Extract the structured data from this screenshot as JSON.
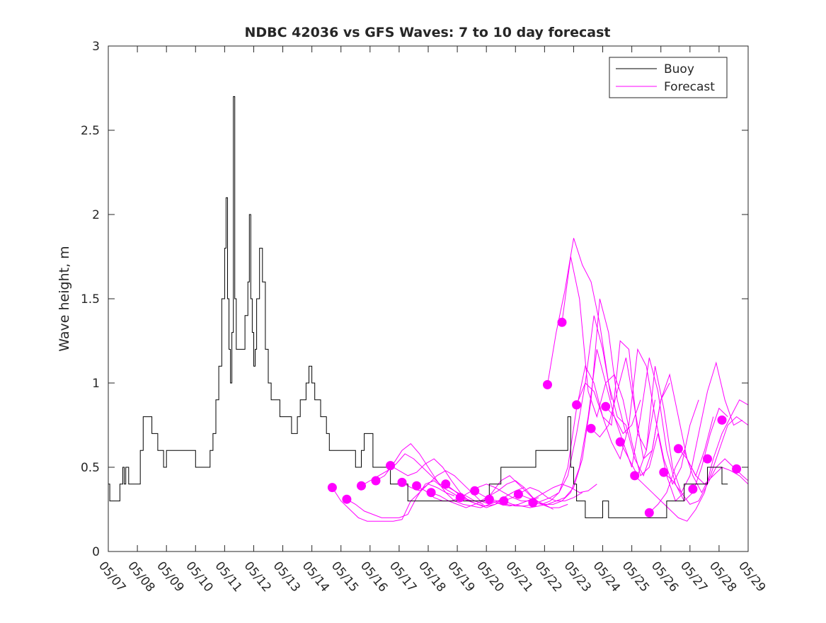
{
  "chart_data": {
    "type": "line",
    "title": "NDBC 42036 vs GFS Waves: 7 to 10 day forecast",
    "xlabel": "",
    "ylabel": "Wave height, m",
    "x_unit": "day of May",
    "xlim": [
      7,
      29
    ],
    "ylim": [
      0,
      3
    ],
    "yticks": [
      0,
      0.5,
      1,
      1.5,
      2,
      2.5,
      3
    ],
    "xtick_labels": [
      "05/07",
      "05/08",
      "05/09",
      "05/10",
      "05/11",
      "05/12",
      "05/13",
      "05/14",
      "05/15",
      "05/16",
      "05/17",
      "05/18",
      "05/19",
      "05/20",
      "05/21",
      "05/22",
      "05/23",
      "05/24",
      "05/25",
      "05/26",
      "05/27",
      "05/28",
      "05/29"
    ],
    "grid": false,
    "legend_position": "top-right",
    "legend": [
      {
        "label": "Buoy",
        "color": "#000000"
      },
      {
        "label": "Forecast",
        "color": "#ff00ff"
      }
    ],
    "buoy": {
      "name": "Buoy",
      "color": "#000000",
      "x": [
        7.0,
        7.05,
        7.3,
        7.4,
        7.5,
        7.55,
        7.6,
        7.7,
        7.8,
        7.9,
        8.0,
        8.1,
        8.2,
        8.4,
        8.5,
        8.6,
        8.7,
        8.8,
        8.9,
        9.0,
        9.2,
        9.5,
        10.0,
        10.1,
        10.2,
        10.3,
        10.4,
        10.5,
        10.6,
        10.7,
        10.8,
        10.9,
        11.0,
        11.05,
        11.1,
        11.15,
        11.2,
        11.25,
        11.3,
        11.35,
        11.4,
        11.5,
        11.6,
        11.7,
        11.8,
        11.85,
        11.9,
        11.95,
        12.0,
        12.05,
        12.1,
        12.2,
        12.3,
        12.4,
        12.5,
        12.6,
        12.7,
        12.8,
        12.9,
        13.0,
        13.1,
        13.3,
        13.5,
        13.6,
        13.7,
        13.8,
        13.9,
        14.0,
        14.1,
        14.2,
        14.3,
        14.5,
        14.6,
        14.8,
        15.0,
        15.2,
        15.3,
        15.5,
        15.7,
        15.8,
        16.0,
        16.1,
        16.3,
        16.5,
        16.7,
        16.9,
        17.0,
        17.3,
        17.6,
        17.9,
        18.2,
        18.5,
        18.7,
        18.9,
        19.1,
        19.3,
        19.5,
        19.7,
        19.9,
        20.1,
        20.3,
        20.5,
        20.7,
        20.9,
        21.1,
        21.3,
        21.5,
        21.7,
        21.9,
        22.1,
        22.3,
        22.6,
        22.8,
        22.9,
        23.0,
        23.1,
        23.2,
        23.4,
        23.6,
        23.8,
        24.0,
        24.2,
        24.5,
        25.0,
        25.5,
        26.0,
        26.2,
        26.4,
        26.6,
        26.8,
        27.0,
        27.3,
        27.6,
        27.9,
        28.0,
        28.1,
        28.3
      ],
      "y": [
        0.4,
        0.3,
        0.3,
        0.4,
        0.5,
        0.4,
        0.5,
        0.4,
        0.4,
        0.4,
        0.4,
        0.6,
        0.8,
        0.8,
        0.7,
        0.7,
        0.6,
        0.6,
        0.5,
        0.6,
        0.6,
        0.6,
        0.5,
        0.5,
        0.5,
        0.5,
        0.5,
        0.6,
        0.7,
        0.9,
        1.1,
        1.5,
        1.8,
        2.1,
        1.5,
        1.2,
        1.0,
        1.3,
        2.7,
        1.5,
        1.2,
        1.2,
        1.2,
        1.4,
        1.6,
        2.0,
        1.5,
        1.3,
        1.1,
        1.2,
        1.5,
        1.8,
        1.6,
        1.2,
        1.0,
        0.9,
        0.9,
        0.9,
        0.8,
        0.8,
        0.8,
        0.7,
        0.8,
        0.9,
        0.9,
        1.0,
        1.1,
        1.0,
        0.9,
        0.9,
        0.8,
        0.7,
        0.6,
        0.6,
        0.6,
        0.6,
        0.6,
        0.5,
        0.6,
        0.7,
        0.7,
        0.5,
        0.5,
        0.5,
        0.4,
        0.4,
        0.4,
        0.3,
        0.3,
        0.3,
        0.3,
        0.3,
        0.3,
        0.3,
        0.3,
        0.3,
        0.3,
        0.3,
        0.3,
        0.4,
        0.4,
        0.5,
        0.5,
        0.5,
        0.5,
        0.5,
        0.5,
        0.6,
        0.6,
        0.6,
        0.6,
        0.6,
        0.8,
        0.5,
        0.4,
        0.3,
        0.3,
        0.2,
        0.2,
        0.2,
        0.3,
        0.2,
        0.2,
        0.2,
        0.2,
        0.2,
        0.3,
        0.3,
        0.3,
        0.4,
        0.4,
        0.4,
        0.5,
        0.5,
        0.5,
        0.4,
        0.4
      ]
    },
    "forecast_series": [
      {
        "color": "#ff00ff",
        "x": [
          14.7,
          15.0,
          15.3,
          15.6,
          15.9,
          16.2,
          16.5,
          16.8,
          17.1,
          17.4,
          17.7,
          18.0,
          18.3,
          18.6,
          18.9
        ],
        "y": [
          0.38,
          0.3,
          0.25,
          0.2,
          0.18,
          0.18,
          0.18,
          0.18,
          0.19,
          0.3,
          0.35,
          0.4,
          0.38,
          0.35,
          0.33
        ]
      },
      {
        "color": "#ff00ff",
        "x": [
          15.2,
          15.5,
          15.8,
          16.1,
          16.4,
          16.7,
          17.0,
          17.3,
          17.6,
          17.9,
          18.2,
          18.5,
          18.8,
          19.1,
          19.4
        ],
        "y": [
          0.31,
          0.28,
          0.24,
          0.22,
          0.2,
          0.2,
          0.2,
          0.22,
          0.32,
          0.4,
          0.42,
          0.38,
          0.35,
          0.32,
          0.3
        ]
      },
      {
        "color": "#ff00ff",
        "x": [
          15.7,
          16.0,
          16.3,
          16.6,
          16.9,
          17.2,
          17.5,
          17.8,
          18.1,
          18.4,
          18.7,
          19.0,
          19.3,
          19.6,
          19.9
        ],
        "y": [
          0.39,
          0.42,
          0.45,
          0.48,
          0.52,
          0.58,
          0.55,
          0.5,
          0.45,
          0.4,
          0.38,
          0.35,
          0.33,
          0.3,
          0.28
        ]
      },
      {
        "color": "#ff00ff",
        "x": [
          16.2,
          16.5,
          16.8,
          17.1,
          17.4,
          17.7,
          18.0,
          18.3,
          18.6,
          18.9,
          19.2,
          19.5,
          19.8,
          20.1,
          20.4
        ],
        "y": [
          0.42,
          0.45,
          0.52,
          0.6,
          0.64,
          0.58,
          0.5,
          0.42,
          0.35,
          0.3,
          0.28,
          0.27,
          0.26,
          0.28,
          0.3
        ]
      },
      {
        "color": "#ff00ff",
        "x": [
          16.7,
          17.0,
          17.3,
          17.6,
          17.9,
          18.2,
          18.5,
          18.8,
          19.1,
          19.4,
          19.7,
          20.0,
          20.3,
          20.6,
          20.9
        ],
        "y": [
          0.51,
          0.48,
          0.45,
          0.47,
          0.52,
          0.55,
          0.5,
          0.42,
          0.35,
          0.3,
          0.28,
          0.26,
          0.28,
          0.32,
          0.35
        ]
      },
      {
        "color": "#ff00ff",
        "x": [
          17.1,
          17.4,
          17.7,
          18.0,
          18.3,
          18.6,
          18.9,
          19.2,
          19.5,
          19.8,
          20.1,
          20.4,
          20.7,
          21.0,
          21.3
        ],
        "y": [
          0.41,
          0.38,
          0.36,
          0.4,
          0.45,
          0.48,
          0.45,
          0.4,
          0.35,
          0.3,
          0.28,
          0.3,
          0.33,
          0.36,
          0.38
        ]
      },
      {
        "color": "#ff00ff",
        "x": [
          17.6,
          17.9,
          18.2,
          18.5,
          18.8,
          19.1,
          19.4,
          19.7,
          20.0,
          20.3,
          20.6,
          20.9,
          21.2,
          21.5,
          21.8
        ],
        "y": [
          0.39,
          0.36,
          0.32,
          0.3,
          0.3,
          0.32,
          0.35,
          0.38,
          0.4,
          0.38,
          0.35,
          0.32,
          0.3,
          0.3,
          0.32
        ]
      },
      {
        "color": "#ff00ff",
        "x": [
          18.1,
          18.4,
          18.7,
          19.0,
          19.3,
          19.6,
          19.9,
          20.2,
          20.5,
          20.8,
          21.1,
          21.4,
          21.7,
          22.0,
          22.3
        ],
        "y": [
          0.35,
          0.33,
          0.3,
          0.28,
          0.26,
          0.28,
          0.3,
          0.35,
          0.42,
          0.45,
          0.4,
          0.35,
          0.3,
          0.28,
          0.25
        ]
      },
      {
        "color": "#ff00ff",
        "x": [
          18.6,
          18.9,
          19.2,
          19.5,
          19.8,
          20.1,
          20.4,
          20.7,
          21.0,
          21.3,
          21.6,
          21.9,
          22.2,
          22.5,
          22.8
        ],
        "y": [
          0.4,
          0.36,
          0.32,
          0.3,
          0.3,
          0.33,
          0.36,
          0.4,
          0.42,
          0.38,
          0.32,
          0.28,
          0.26,
          0.26,
          0.28
        ]
      },
      {
        "color": "#ff00ff",
        "x": [
          19.1,
          19.4,
          19.7,
          20.0,
          20.3,
          20.6,
          20.9,
          21.2,
          21.5,
          21.8,
          22.1,
          22.4,
          22.7,
          23.0,
          23.3
        ],
        "y": [
          0.32,
          0.3,
          0.28,
          0.27,
          0.28,
          0.3,
          0.32,
          0.35,
          0.38,
          0.36,
          0.32,
          0.3,
          0.3,
          0.32,
          0.35
        ]
      },
      {
        "color": "#ff00ff",
        "x": [
          19.6,
          19.9,
          20.2,
          20.5,
          20.8,
          21.1,
          21.4,
          21.7,
          22.0,
          22.3,
          22.6,
          22.9,
          23.2,
          23.5,
          23.8
        ],
        "y": [
          0.36,
          0.33,
          0.3,
          0.28,
          0.27,
          0.28,
          0.3,
          0.32,
          0.35,
          0.38,
          0.4,
          0.38,
          0.35,
          0.36,
          0.4
        ]
      },
      {
        "color": "#ff00ff",
        "x": [
          20.1,
          20.4,
          20.7,
          21.0,
          21.3,
          21.6,
          21.9,
          22.2,
          22.5,
          22.8,
          23.1,
          23.4,
          23.7,
          24.0,
          24.3
        ],
        "y": [
          0.31,
          0.3,
          0.28,
          0.27,
          0.27,
          0.28,
          0.3,
          0.32,
          0.35,
          0.45,
          0.7,
          1.0,
          1.4,
          1.2,
          0.9
        ]
      },
      {
        "color": "#ff00ff",
        "x": [
          20.6,
          20.9,
          21.2,
          21.5,
          21.8,
          22.1,
          22.4,
          22.7,
          23.0,
          23.3,
          23.6,
          23.9,
          24.2,
          24.5,
          24.8
        ],
        "y": [
          0.3,
          0.28,
          0.27,
          0.26,
          0.27,
          0.28,
          0.3,
          0.32,
          0.38,
          0.55,
          0.9,
          1.5,
          1.3,
          0.9,
          0.7
        ]
      },
      {
        "color": "#ff00ff",
        "x": [
          21.1,
          21.4,
          21.7,
          22.0,
          22.3,
          22.6,
          22.9,
          23.2,
          23.5,
          23.8,
          24.1,
          24.4,
          24.7,
          25.0,
          25.3
        ],
        "y": [
          0.34,
          0.32,
          0.3,
          0.28,
          0.28,
          0.3,
          0.35,
          0.5,
          0.8,
          1.2,
          1.0,
          0.8,
          0.7,
          0.75,
          0.9
        ]
      },
      {
        "color": "#ff00ff",
        "x": [
          21.6,
          21.9,
          22.2,
          22.5,
          22.8,
          23.1,
          23.4,
          23.7,
          24.0,
          24.3,
          24.6,
          24.9,
          25.2,
          25.5,
          25.8
        ],
        "y": [
          0.29,
          0.28,
          0.3,
          0.35,
          0.5,
          0.85,
          1.1,
          1.0,
          0.8,
          0.75,
          1.25,
          1.2,
          0.7,
          0.6,
          0.9
        ]
      },
      {
        "color": "#ff00ff",
        "x": [
          22.1,
          22.4,
          22.7,
          23.0,
          23.3,
          23.6,
          23.9,
          24.2,
          24.5,
          24.8,
          25.1,
          25.4,
          25.7,
          26.0,
          26.3
        ],
        "y": [
          0.99,
          1.3,
          1.55,
          1.86,
          1.7,
          1.6,
          1.35,
          1.0,
          0.8,
          0.75,
          0.55,
          0.45,
          0.6,
          0.9,
          1.0
        ]
      },
      {
        "color": "#ff00ff",
        "x": [
          22.6,
          22.9,
          23.2,
          23.5,
          23.8,
          24.1,
          24.4,
          24.7,
          25.0,
          25.3,
          25.6,
          25.9,
          26.2,
          26.5,
          26.8
        ],
        "y": [
          1.36,
          1.75,
          1.5,
          0.95,
          0.8,
          1.0,
          1.05,
          0.9,
          0.65,
          0.45,
          0.5,
          0.7,
          0.45,
          0.3,
          0.35
        ]
      },
      {
        "color": "#ff00ff",
        "x": [
          23.1,
          23.4,
          23.7,
          24.0,
          24.3,
          24.6,
          24.9,
          25.2,
          25.5,
          25.8,
          26.1,
          26.4,
          26.7,
          27.0,
          27.3
        ],
        "y": [
          0.87,
          1.0,
          0.95,
          0.8,
          0.65,
          0.55,
          0.75,
          1.2,
          1.1,
          0.8,
          0.55,
          0.4,
          0.5,
          0.75,
          0.9
        ]
      },
      {
        "color": "#ff00ff",
        "x": [
          23.6,
          23.9,
          24.2,
          24.5,
          24.8,
          25.1,
          25.4,
          25.7,
          26.0,
          26.3,
          26.6,
          26.9,
          27.2,
          27.5,
          27.8
        ],
        "y": [
          0.73,
          0.68,
          0.75,
          0.95,
          1.15,
          0.85,
          0.55,
          0.6,
          0.9,
          1.05,
          0.8,
          0.55,
          0.45,
          0.6,
          0.8
        ]
      },
      {
        "color": "#ff00ff",
        "x": [
          24.1,
          24.4,
          24.7,
          25.0,
          25.3,
          25.6,
          25.9,
          26.2,
          26.5,
          26.8,
          27.1,
          27.4,
          27.7,
          28.0,
          28.3
        ],
        "y": [
          0.86,
          0.8,
          0.65,
          0.5,
          0.8,
          1.15,
          0.95,
          0.6,
          0.4,
          0.3,
          0.35,
          0.5,
          0.7,
          0.85,
          0.8
        ]
      },
      {
        "color": "#ff00ff",
        "x": [
          24.6,
          24.9,
          25.2,
          25.5,
          25.8,
          26.1,
          26.4,
          26.7,
          27.0,
          27.3,
          27.6,
          27.9,
          28.2,
          28.5,
          28.8
        ],
        "y": [
          0.65,
          0.55,
          0.45,
          0.6,
          1.1,
          0.85,
          0.5,
          0.35,
          0.45,
          0.7,
          0.95,
          1.12,
          0.9,
          0.75,
          0.78
        ]
      },
      {
        "color": "#ff00ff",
        "x": [
          25.1,
          25.4,
          25.7,
          26.0,
          26.3,
          26.6,
          26.9,
          27.2,
          27.5,
          27.8,
          28.1,
          28.4,
          28.7,
          29.0
        ],
        "y": [
          0.45,
          0.4,
          0.35,
          0.3,
          0.25,
          0.2,
          0.18,
          0.25,
          0.35,
          0.55,
          0.7,
          0.8,
          0.9,
          0.87
        ]
      },
      {
        "color": "#ff00ff",
        "x": [
          25.6,
          25.9,
          26.2,
          26.5,
          26.8,
          27.1,
          27.4,
          27.7,
          28.0,
          28.3,
          28.6,
          29.0
        ],
        "y": [
          0.23,
          0.28,
          0.35,
          0.5,
          0.6,
          0.45,
          0.35,
          0.45,
          0.6,
          0.75,
          0.8,
          0.75
        ]
      },
      {
        "color": "#ff00ff",
        "x": [
          26.1,
          26.4,
          26.7,
          27.0,
          27.3,
          27.6,
          27.9,
          28.2,
          28.5,
          28.8,
          29.0
        ],
        "y": [
          0.47,
          0.42,
          0.35,
          0.28,
          0.3,
          0.4,
          0.5,
          0.55,
          0.5,
          0.45,
          0.42
        ]
      },
      {
        "color": "#ff00ff",
        "x": [
          26.6,
          26.9,
          27.2,
          27.5,
          27.8,
          28.1,
          28.4,
          28.7,
          29.0
        ],
        "y": [
          0.61,
          0.55,
          0.45,
          0.4,
          0.45,
          0.5,
          0.48,
          0.45,
          0.4
        ]
      }
    ],
    "forecast_markers": {
      "color": "#ff00ff",
      "x": [
        14.7,
        15.2,
        15.7,
        16.2,
        16.7,
        17.1,
        17.6,
        18.1,
        18.6,
        19.1,
        19.6,
        20.1,
        20.6,
        21.1,
        21.6,
        22.1,
        22.6,
        23.1,
        23.6,
        24.1,
        24.6,
        25.1,
        25.6,
        26.1,
        26.6,
        27.1,
        27.6,
        28.1,
        28.6
      ],
      "y": [
        0.38,
        0.31,
        0.39,
        0.42,
        0.51,
        0.41,
        0.39,
        0.35,
        0.4,
        0.32,
        0.36,
        0.31,
        0.3,
        0.34,
        0.29,
        0.99,
        1.36,
        0.87,
        0.73,
        0.86,
        0.65,
        0.45,
        0.23,
        0.47,
        0.61,
        0.37,
        0.55,
        0.78,
        0.49
      ]
    }
  }
}
